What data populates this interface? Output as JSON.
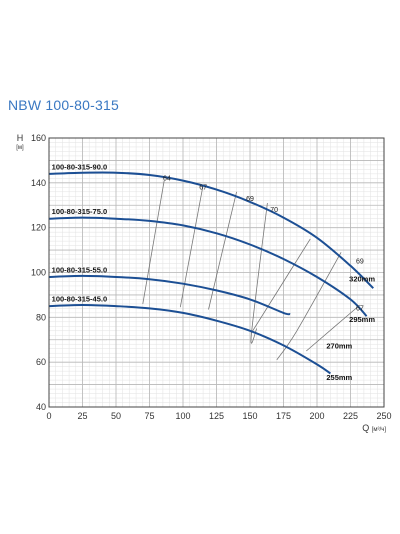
{
  "title": "NBW 100-80-315",
  "colors": {
    "curve": "#1c4f94",
    "efficiency": "#777777",
    "grid_major": "#b8b8b8",
    "grid_minor": "#e2e2e2",
    "title": "#3a78c2"
  },
  "chart_data": {
    "type": "line",
    "title": "NBW 100-80-315",
    "ylabel": "H",
    "ylabel_unit": "[м]",
    "xlabel": "Q",
    "xlabel_unit": "[м³/ч]",
    "xlim": [
      0,
      250
    ],
    "ylim": [
      40,
      160
    ],
    "x_ticks": [
      0,
      25,
      50,
      75,
      100,
      125,
      150,
      175,
      200,
      225,
      250
    ],
    "y_ticks": [
      40,
      60,
      80,
      100,
      120,
      140,
      160
    ],
    "grid": true,
    "series": [
      {
        "name": "100-80-315-90.0",
        "diameter": "320mm",
        "points": [
          [
            0,
            144
          ],
          [
            25,
            144.5
          ],
          [
            50,
            144.5
          ],
          [
            75,
            143.5
          ],
          [
            100,
            141
          ],
          [
            125,
            137
          ],
          [
            150,
            131.5
          ],
          [
            175,
            124.5
          ],
          [
            200,
            115.5
          ],
          [
            225,
            103
          ],
          [
            242,
            93
          ]
        ]
      },
      {
        "name": "100-80-315-75.0",
        "diameter": "295mm",
        "points": [
          [
            0,
            124
          ],
          [
            25,
            124.5
          ],
          [
            50,
            124
          ],
          [
            75,
            123
          ],
          [
            100,
            121
          ],
          [
            125,
            117.5
          ],
          [
            150,
            112.5
          ],
          [
            175,
            106
          ],
          [
            200,
            98
          ],
          [
            225,
            88
          ],
          [
            237,
            80.5
          ]
        ]
      },
      {
        "name": "100-80-315-55.0",
        "diameter": "270mm",
        "points": [
          [
            0,
            98
          ],
          [
            25,
            98.5
          ],
          [
            50,
            98
          ],
          [
            75,
            97
          ],
          [
            100,
            95
          ],
          [
            125,
            92
          ],
          [
            150,
            88
          ],
          [
            175,
            82
          ],
          [
            180,
            81.5
          ]
        ]
      },
      {
        "name": "100-80-315-45.0",
        "diameter": "255mm",
        "points": [
          [
            0,
            85
          ],
          [
            25,
            85.5
          ],
          [
            50,
            85
          ],
          [
            75,
            84
          ],
          [
            100,
            82
          ],
          [
            125,
            78.5
          ],
          [
            150,
            74
          ],
          [
            175,
            67.5
          ],
          [
            200,
            59
          ],
          [
            210,
            55
          ]
        ]
      }
    ],
    "efficiency_lines": [
      {
        "label": "64",
        "points": [
          [
            86,
            141
          ],
          [
            70,
            86
          ]
        ]
      },
      {
        "label": "67",
        "points": [
          [
            115,
            139
          ],
          [
            98,
            84.5
          ]
        ]
      },
      {
        "label": "69",
        "points": [
          [
            140,
            136
          ],
          [
            119,
            83.5
          ]
        ]
      },
      {
        "label": "70",
        "points": [
          [
            163,
            131
          ],
          [
            151,
            72
          ],
          [
            155,
            75
          ]
        ]
      },
      {
        "label": "",
        "points": [
          [
            195,
            115
          ],
          [
            151,
            73
          ]
        ]
      },
      {
        "label": "69",
        "points": [
          [
            218,
            109
          ],
          [
            185,
            74
          ],
          [
            170,
            61
          ]
        ]
      },
      {
        "label": "67",
        "points": [
          [
            232,
            85.5
          ],
          [
            192,
            65
          ]
        ]
      }
    ],
    "efficiency_label_positions": [
      {
        "label": "64",
        "x": 88,
        "y": 141
      },
      {
        "label": "67",
        "x": 115,
        "y": 137
      },
      {
        "label": "69",
        "x": 150,
        "y": 132
      },
      {
        "label": "70",
        "x": 168,
        "y": 127
      },
      {
        "label": "69",
        "x": 232,
        "y": 104
      },
      {
        "label": "67",
        "x": 232,
        "y": 83
      }
    ],
    "curve_label_positions": [
      {
        "label": "100-80-315-90.0",
        "x": 2,
        "y": 146
      },
      {
        "label": "100-80-315-75.0",
        "x": 2,
        "y": 126
      },
      {
        "label": "100-80-315-55.0",
        "x": 2,
        "y": 100
      },
      {
        "label": "100-80-315-45.0",
        "x": 2,
        "y": 87
      }
    ],
    "diameter_label_positions": [
      {
        "label": "320mm",
        "x": 224,
        "y": 96
      },
      {
        "label": "295mm",
        "x": 224,
        "y": 78
      },
      {
        "label": "270mm",
        "x": 207,
        "y": 66
      },
      {
        "label": "255mm",
        "x": 207,
        "y": 52
      }
    ]
  }
}
